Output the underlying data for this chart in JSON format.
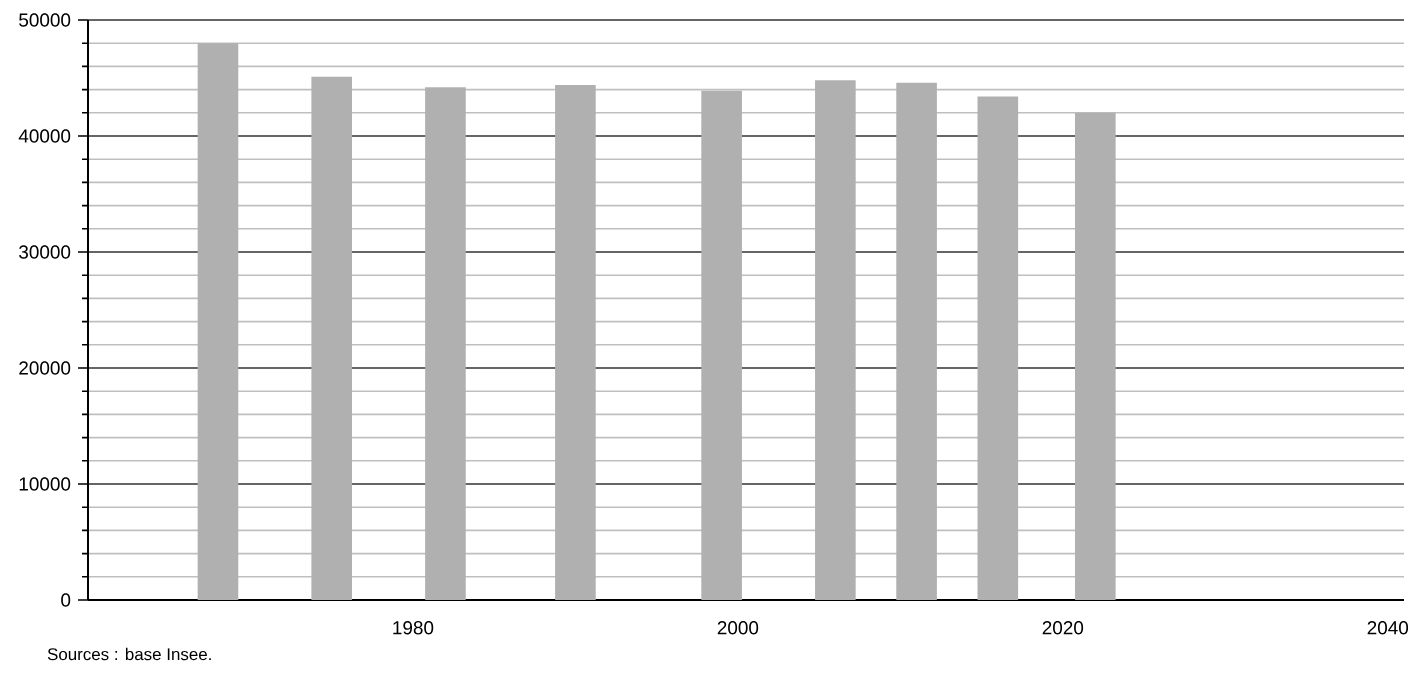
{
  "chart_data": {
    "type": "bar",
    "x": [
      1968,
      1975,
      1982,
      1990,
      1999,
      2006,
      2011,
      2016,
      2022
    ],
    "values": [
      48000,
      45100,
      44200,
      44400,
      43900,
      44800,
      44600,
      43400,
      42000
    ],
    "color": "#b0b0b0",
    "xlim": [
      1960,
      2041
    ],
    "xticks": [
      1980,
      2000,
      2020,
      2040
    ],
    "ylim": [
      0,
      50000
    ],
    "yticks": [
      0,
      {
        "value": 2000,
        "label": null
      },
      {
        "value": 4000,
        "label": null
      },
      {
        "value": 6000,
        "label": null
      },
      {
        "value": 8000,
        "label": null
      },
      10000,
      {
        "value": 12000,
        "label": null
      },
      {
        "value": 14000,
        "label": null
      },
      {
        "value": 16000,
        "label": null
      },
      {
        "value": 18000,
        "label": null
      },
      20000,
      {
        "value": 22000,
        "label": null
      },
      {
        "value": 24000,
        "label": null
      },
      {
        "value": 26000,
        "label": null
      },
      {
        "value": 28000,
        "label": null
      },
      30000,
      {
        "value": 32000,
        "label": null
      },
      {
        "value": 34000,
        "label": null
      },
      {
        "value": 36000,
        "label": null
      },
      {
        "value": 38000,
        "label": null
      },
      40000,
      {
        "value": 42000,
        "label": null
      },
      {
        "value": 44000,
        "label": null
      },
      {
        "value": 46000,
        "label": null
      },
      {
        "value": 48000,
        "label": null
      },
      50000
    ],
    "grid": "y",
    "annotations": [
      "Sources : base Insee."
    ]
  }
}
